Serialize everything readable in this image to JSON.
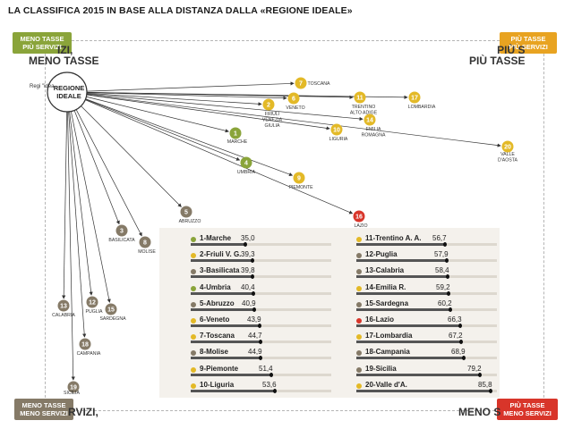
{
  "title": "LA CLASSIFICA 2015 IN BASE ALLA DISTANZA DALLA «REGIONE IDEALE»",
  "corners": {
    "top_left": {
      "badge": [
        "MENO TASSE",
        "PIÙ SERVIZI"
      ],
      "label": [
        "IZI,",
        "MENO TASSE"
      ]
    },
    "top_right": {
      "badge": [
        "PIÙ TASSE",
        "PIÙ SERVIZI"
      ],
      "label": [
        "PIÙ S",
        "PIÙ TASSE"
      ]
    },
    "bottom_left": {
      "badge": [
        "MENO TASSE",
        "MENO SERVIZI"
      ],
      "label": [
        "RVIZI,"
      ]
    },
    "bottom_right": {
      "badge": [
        "PIÙ TASSE",
        "MENO SERVIZI"
      ],
      "label": [
        "MENO S"
      ]
    }
  },
  "colors": {
    "green": "#8aa43a",
    "yellow": "#e3b927",
    "gray": "#857a67",
    "red": "#d8352a",
    "line": "#333333"
  },
  "origin": {
    "label": "REGIONE IDEALE",
    "sublabel": "Regi \"idea"
  },
  "chart_data": {
    "type": "table",
    "series_name": "Distanza dalla regione ideale",
    "rows": [
      {
        "rank": 1,
        "region": "Marche",
        "map_label": "MARCHE",
        "value": 35.0,
        "value_label": "35,0",
        "color": "green"
      },
      {
        "rank": 2,
        "region": "Friuli V. G.",
        "map_label": "FRIULI VENEZIA GIULIA",
        "value": 39.3,
        "value_label": "39,3",
        "color": "yellow"
      },
      {
        "rank": 3,
        "region": "Basilicata",
        "map_label": "BASILICATA",
        "value": 39.8,
        "value_label": "39,8",
        "color": "gray"
      },
      {
        "rank": 4,
        "region": "Umbria",
        "map_label": "UMBRIA",
        "value": 40.4,
        "value_label": "40,4",
        "color": "green"
      },
      {
        "rank": 5,
        "region": "Abruzzo",
        "map_label": "ABRUZZO",
        "value": 40.9,
        "value_label": "40,9",
        "color": "gray"
      },
      {
        "rank": 6,
        "region": "Veneto",
        "map_label": "VENETO",
        "value": 43.9,
        "value_label": "43,9",
        "color": "yellow"
      },
      {
        "rank": 7,
        "region": "Toscana",
        "map_label": "TOSCANA",
        "value": 44.7,
        "value_label": "44,7",
        "color": "yellow"
      },
      {
        "rank": 8,
        "region": "Molise",
        "map_label": "MOLISE",
        "value": 44.9,
        "value_label": "44,9",
        "color": "gray"
      },
      {
        "rank": 9,
        "region": "Piemonte",
        "map_label": "PIEMONTE",
        "value": 51.4,
        "value_label": "51,4",
        "color": "yellow"
      },
      {
        "rank": 10,
        "region": "Liguria",
        "map_label": "LIGURIA",
        "value": 53.6,
        "value_label": "53,6",
        "color": "yellow"
      },
      {
        "rank": 11,
        "region": "Trentino A. A.",
        "map_label": "TRENTINO ALTO ADIGE",
        "value": 56.7,
        "value_label": "56,7",
        "color": "yellow"
      },
      {
        "rank": 12,
        "region": "Puglia",
        "map_label": "PUGLIA",
        "value": 57.9,
        "value_label": "57,9",
        "color": "gray"
      },
      {
        "rank": 13,
        "region": "Calabria",
        "map_label": "CALABRIA",
        "value": 58.4,
        "value_label": "58,4",
        "color": "gray"
      },
      {
        "rank": 14,
        "region": "Emilia R.",
        "map_label": "EMILIA ROMAGNA",
        "value": 59.2,
        "value_label": "59,2",
        "color": "yellow"
      },
      {
        "rank": 15,
        "region": "Sardegna",
        "map_label": "SARDEGNA",
        "value": 60.2,
        "value_label": "60,2",
        "color": "gray"
      },
      {
        "rank": 16,
        "region": "Lazio",
        "map_label": "LAZIO",
        "value": 66.3,
        "value_label": "66,3",
        "color": "red"
      },
      {
        "rank": 17,
        "region": "Lombardia",
        "map_label": "LOMBARDIA",
        "value": 67.2,
        "value_label": "67,2",
        "color": "yellow"
      },
      {
        "rank": 18,
        "region": "Campania",
        "map_label": "CAMPANIA",
        "value": 68.9,
        "value_label": "68,9",
        "color": "gray"
      },
      {
        "rank": 19,
        "region": "Sicilia",
        "map_label": "SICILIA",
        "value": 79.2,
        "value_label": "79,2",
        "color": "gray"
      },
      {
        "rank": 20,
        "region": "Valle d'A.",
        "map_label": "VALLE D'AOSTA",
        "value": 85.8,
        "value_label": "85,8",
        "color": "yellow"
      }
    ],
    "bar_max": 90
  }
}
